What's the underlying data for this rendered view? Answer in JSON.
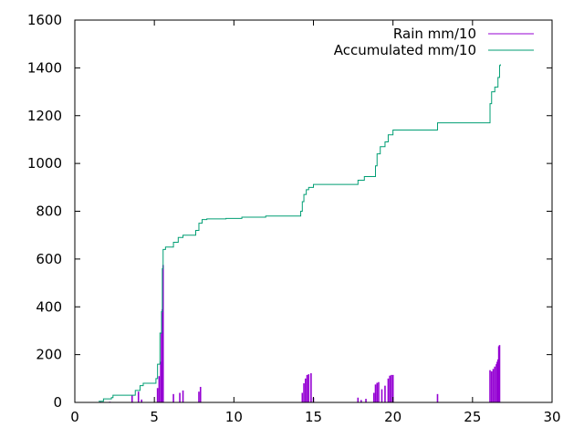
{
  "chart_data": {
    "type": "line",
    "xlim": [
      0,
      30
    ],
    "ylim": [
      0,
      1600
    ],
    "x_ticks": [
      "0",
      "5",
      "10",
      "15",
      "20",
      "25",
      "30"
    ],
    "y_ticks": [
      "0",
      "200",
      "400",
      "600",
      "800",
      "1000",
      "1200",
      "1400",
      "1600"
    ],
    "grid": false,
    "legend_position": "top-right",
    "series": [
      {
        "name": "Rain mm/10",
        "style": "impulses",
        "color": "#9400d3",
        "points": [
          [
            1.6,
            3
          ],
          [
            2.2,
            3
          ],
          [
            3.6,
            30
          ],
          [
            4.0,
            45
          ],
          [
            4.2,
            12
          ],
          [
            5.2,
            60
          ],
          [
            5.3,
            110
          ],
          [
            5.4,
            170
          ],
          [
            5.45,
            290
          ],
          [
            5.5,
            390
          ],
          [
            5.55,
            575
          ],
          [
            6.2,
            35
          ],
          [
            6.6,
            40
          ],
          [
            6.8,
            50
          ],
          [
            7.8,
            45
          ],
          [
            7.9,
            65
          ],
          [
            14.3,
            40
          ],
          [
            14.4,
            80
          ],
          [
            14.5,
            100
          ],
          [
            14.6,
            115
          ],
          [
            14.7,
            118
          ],
          [
            14.85,
            122
          ],
          [
            15.0,
            20
          ],
          [
            17.8,
            20
          ],
          [
            18.0,
            10
          ],
          [
            18.3,
            15
          ],
          [
            18.8,
            40
          ],
          [
            18.9,
            75
          ],
          [
            19.0,
            82
          ],
          [
            19.1,
            85
          ],
          [
            19.3,
            55
          ],
          [
            19.5,
            70
          ],
          [
            19.7,
            100
          ],
          [
            19.8,
            112
          ],
          [
            19.9,
            115
          ],
          [
            20.0,
            115
          ],
          [
            22.8,
            35
          ],
          [
            26.1,
            135
          ],
          [
            26.2,
            130
          ],
          [
            26.3,
            140
          ],
          [
            26.4,
            150
          ],
          [
            26.5,
            160
          ],
          [
            26.55,
            170
          ],
          [
            26.6,
            180
          ],
          [
            26.65,
            235
          ],
          [
            26.7,
            240
          ]
        ]
      },
      {
        "name": "Accumulated mm/10",
        "style": "steps",
        "color": "#009e73",
        "points": [
          [
            1.5,
            5
          ],
          [
            1.8,
            15
          ],
          [
            2.3,
            20
          ],
          [
            2.4,
            30
          ],
          [
            3.8,
            50
          ],
          [
            4.1,
            70
          ],
          [
            4.3,
            80
          ],
          [
            5.1,
            100
          ],
          [
            5.2,
            160
          ],
          [
            5.35,
            290
          ],
          [
            5.45,
            380
          ],
          [
            5.5,
            560
          ],
          [
            5.55,
            640
          ],
          [
            5.7,
            650
          ],
          [
            6.2,
            670
          ],
          [
            6.5,
            690
          ],
          [
            6.8,
            700
          ],
          [
            7.6,
            720
          ],
          [
            7.8,
            750
          ],
          [
            8.0,
            765
          ],
          [
            8.3,
            768
          ],
          [
            9.5,
            770
          ],
          [
            10.5,
            775
          ],
          [
            12.0,
            780
          ],
          [
            13.0,
            780
          ],
          [
            14.2,
            800
          ],
          [
            14.3,
            840
          ],
          [
            14.4,
            870
          ],
          [
            14.55,
            890
          ],
          [
            14.7,
            900
          ],
          [
            15.0,
            912
          ],
          [
            17.8,
            930
          ],
          [
            18.2,
            945
          ],
          [
            18.9,
            990
          ],
          [
            19.0,
            1040
          ],
          [
            19.2,
            1070
          ],
          [
            19.5,
            1090
          ],
          [
            19.7,
            1120
          ],
          [
            20.0,
            1140
          ],
          [
            22.8,
            1170
          ],
          [
            26.1,
            1250
          ],
          [
            26.2,
            1300
          ],
          [
            26.4,
            1320
          ],
          [
            26.6,
            1360
          ],
          [
            26.7,
            1410
          ],
          [
            26.75,
            1415
          ]
        ]
      }
    ]
  }
}
